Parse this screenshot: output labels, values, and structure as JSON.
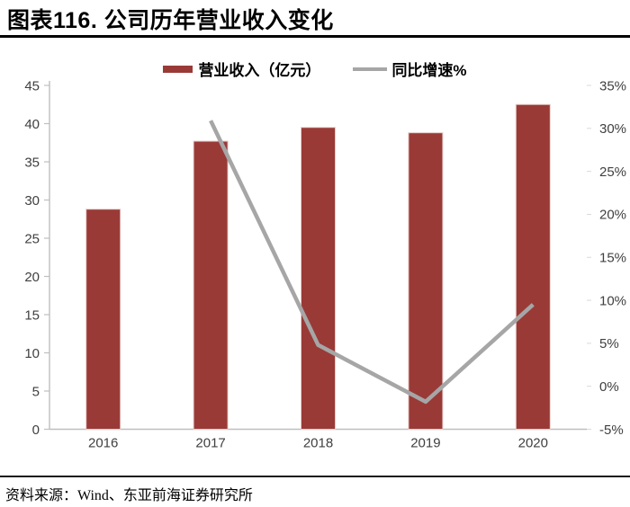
{
  "title": {
    "prefix": "图表116.",
    "text": "公司历年营业收入变化",
    "full": "图表116. 公司历年营业收入变化"
  },
  "legend": {
    "revenue": {
      "label": "营业收入（亿元）",
      "color": "#993A37",
      "swatch": "bar"
    },
    "growth": {
      "label": "同比增速%",
      "color": "#A6A6A6",
      "swatch": "line"
    }
  },
  "source": "资料来源：Wind、东亚前海证券研究所",
  "colors": {
    "bar": "#993A37",
    "bar_border": "#E7CBC7",
    "line": "#A6A6A6",
    "axis": "#BFBFBF",
    "tick_text": "#404040",
    "title_text": "#000000"
  },
  "chart_data": {
    "type": "bar",
    "subtype": "bar+line combo, dual axis",
    "title": "公司历年营业收入变化",
    "categories": [
      "2016",
      "2017",
      "2018",
      "2019",
      "2020"
    ],
    "series": [
      {
        "name": "营业收入（亿元）",
        "type": "bar",
        "axis": "left",
        "color": "#993A37",
        "values": [
          28.8,
          37.7,
          39.5,
          38.8,
          42.5
        ]
      },
      {
        "name": "同比增速%",
        "type": "line",
        "axis": "right",
        "color": "#A6A6A6",
        "values": [
          null,
          30.9,
          4.8,
          -1.8,
          9.5
        ]
      }
    ],
    "left_axis": {
      "min": 0,
      "max": 45,
      "step": 5,
      "tick_labels": [
        "0",
        "5",
        "10",
        "15",
        "20",
        "25",
        "30",
        "35",
        "40",
        "45"
      ]
    },
    "right_axis": {
      "min": -5,
      "max": 35,
      "step": 5,
      "tick_labels": [
        "-5%",
        "0%",
        "5%",
        "10%",
        "15%",
        "20%",
        "25%",
        "30%",
        "35%"
      ]
    },
    "grid": false,
    "legend_position": "top"
  }
}
